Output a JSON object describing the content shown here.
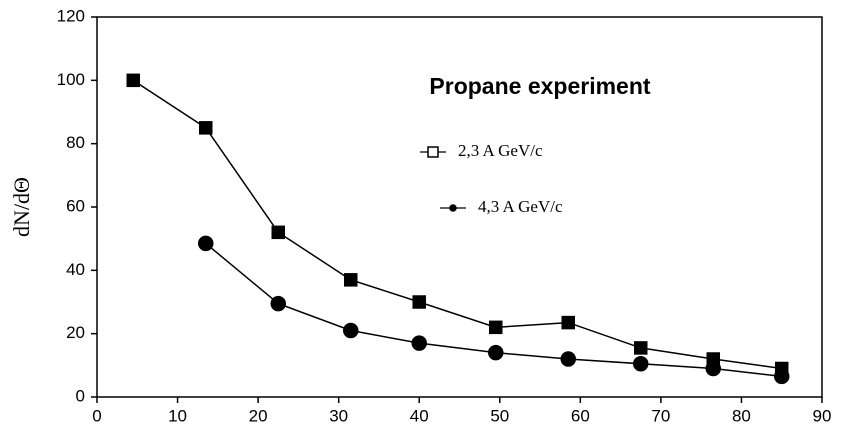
{
  "chart_data": {
    "type": "line",
    "title": "Propane experiment",
    "y_label": "dN/dΘ",
    "xlim": [
      0,
      90
    ],
    "xticks": [
      0,
      10,
      20,
      30,
      40,
      50,
      60,
      70,
      80,
      90
    ],
    "ylim": [
      0,
      120
    ],
    "yticks": [
      0,
      20,
      40,
      60,
      80,
      100,
      120
    ],
    "series": [
      {
        "name": "2,3 A GeV/c",
        "color": "#000000",
        "marker": "square",
        "x": [
          4.5,
          13.5,
          22.5,
          31.5,
          40,
          49.5,
          58.5,
          67.5,
          76.5,
          85
        ],
        "values": [
          100,
          85,
          52,
          37,
          30,
          22,
          23.5,
          15.5,
          12,
          9
        ]
      },
      {
        "name": "4,3 A GeV/c",
        "color": "#000000",
        "marker": "circle",
        "x": [
          13.5,
          22.5,
          31.5,
          40,
          49.5,
          58.5,
          67.5,
          76.5,
          85
        ],
        "values": [
          48.5,
          29.5,
          21,
          17,
          14,
          12,
          10.5,
          9,
          6.5
        ]
      }
    ]
  }
}
